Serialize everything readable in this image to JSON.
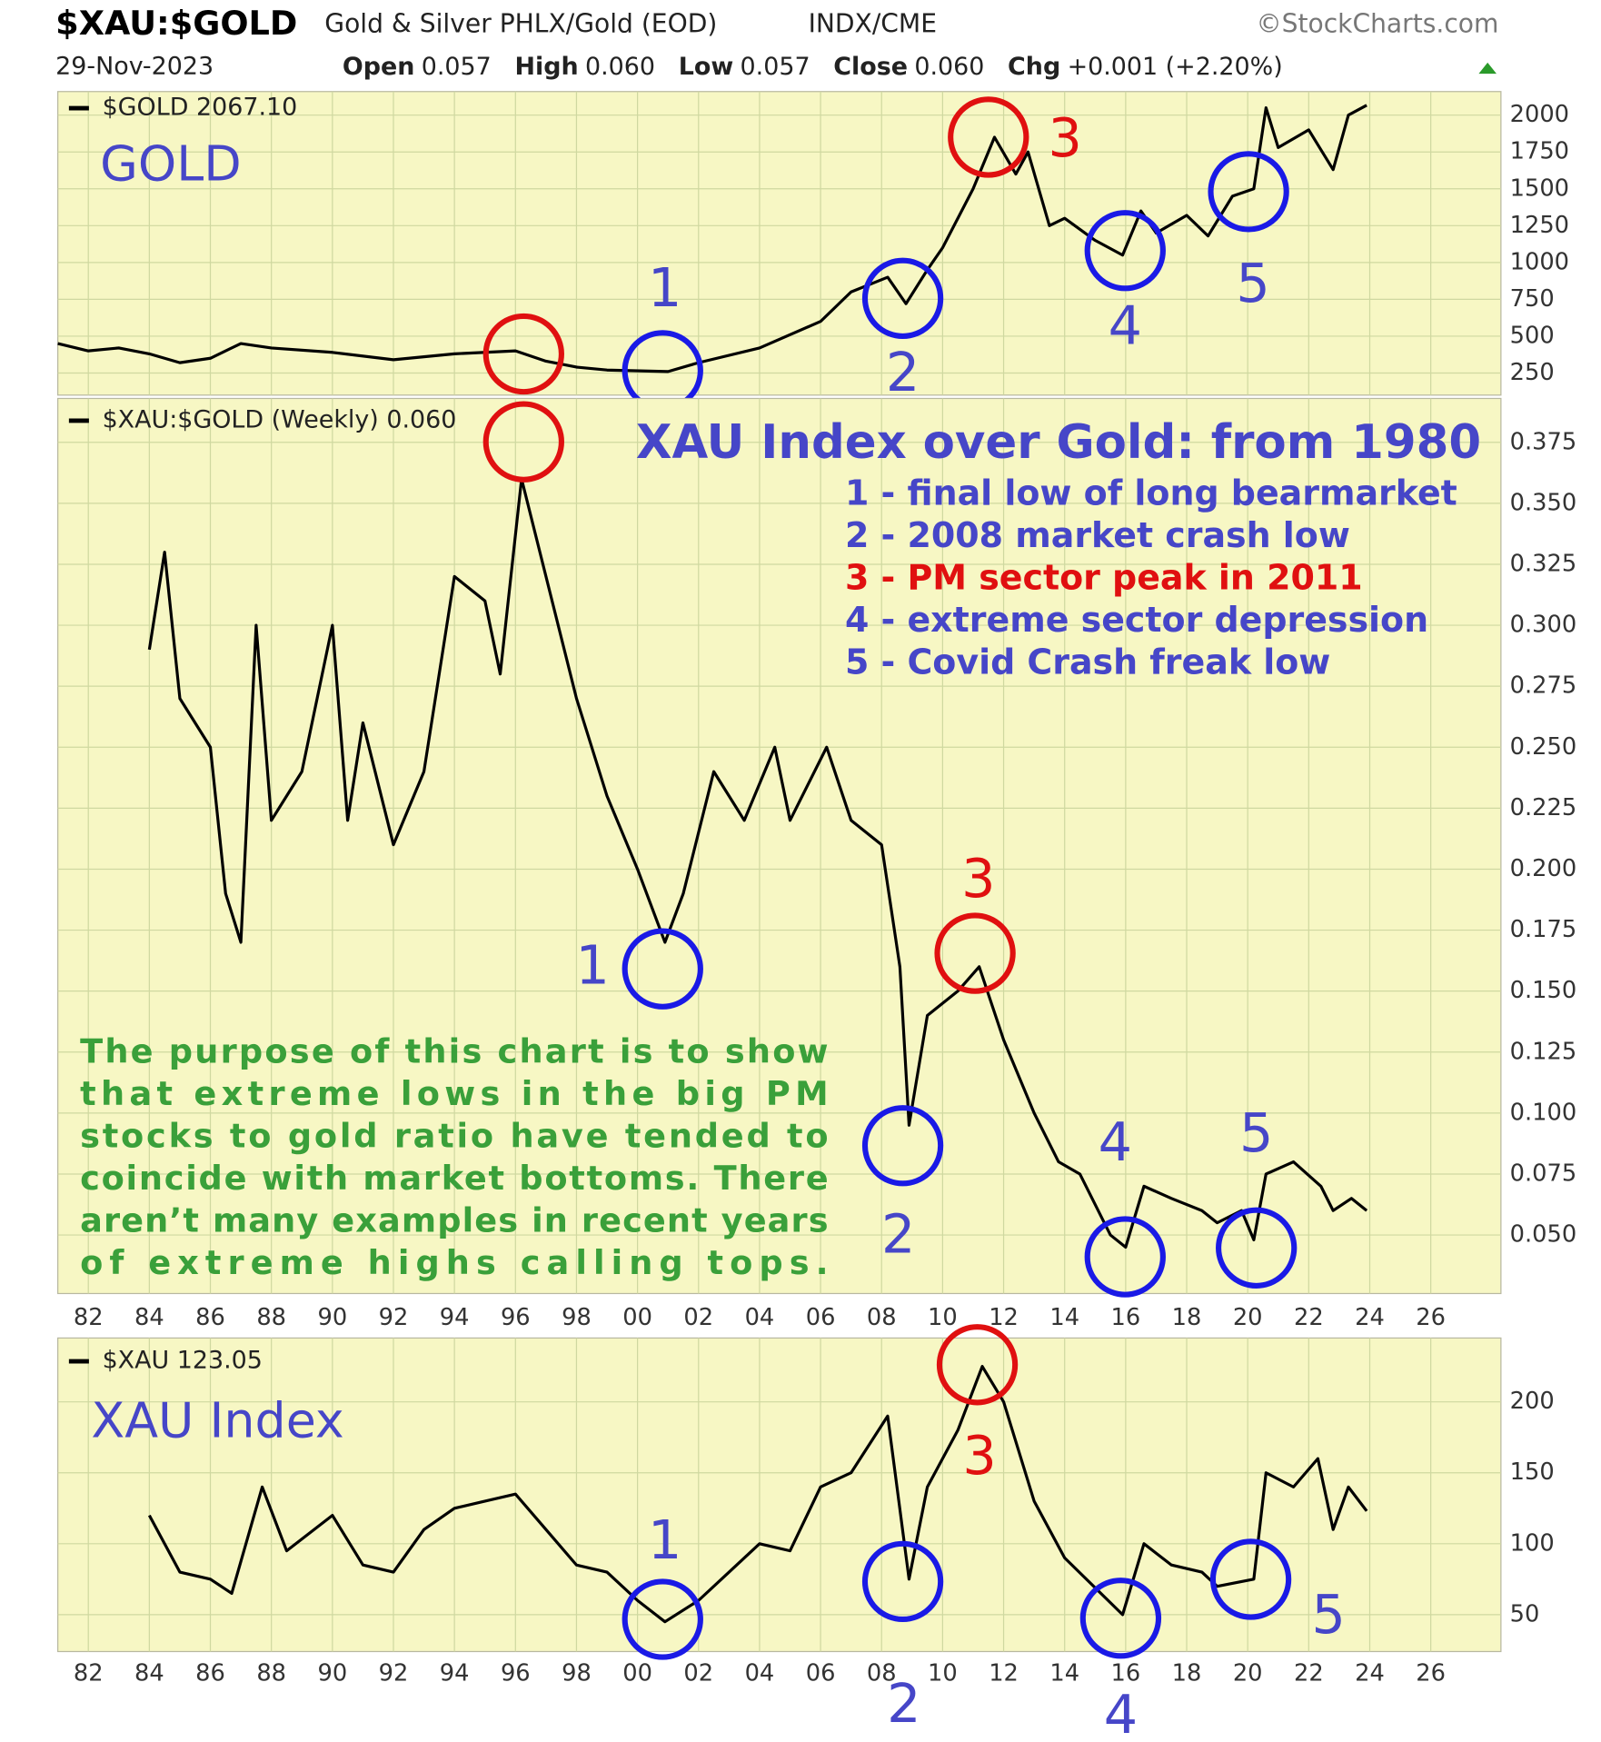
{
  "header": {
    "title": "$XAU:$GOLD",
    "subtitle": "Gold & Silver PHLX/Gold (EOD)",
    "exchange": "INDX/CME",
    "source": "©StockCharts.com",
    "date": "29-Nov-2023",
    "quote": [
      {
        "label": "Open",
        "value": "0.057"
      },
      {
        "label": "High",
        "value": "0.060"
      },
      {
        "label": "Low",
        "value": "0.057"
      },
      {
        "label": "Close",
        "value": "0.060"
      },
      {
        "label": "Chg",
        "value": "+0.001 (+2.20%)"
      }
    ]
  },
  "chart_data": [
    {
      "type": "line",
      "panel_label": "GOLD",
      "x": [
        1981,
        1982,
        1983,
        1984,
        1985,
        1986,
        1987,
        1988,
        1990,
        1992,
        1994,
        1996,
        1997,
        1998,
        1999,
        2001,
        2002,
        2004,
        2006,
        2007,
        2008.2,
        2008.8,
        2009.5,
        2010,
        2011,
        2011.7,
        2012.4,
        2012.8,
        2013.5,
        2014,
        2015,
        2015.9,
        2016.5,
        2017,
        2018,
        2018.7,
        2019.5,
        2020.2,
        2020.6,
        2021,
        2022,
        2022.8,
        2023.3,
        2023.9
      ],
      "series": [
        {
          "name": "$GOLD 2067.10",
          "color": "#000000",
          "values": [
            450,
            400,
            420,
            380,
            320,
            350,
            450,
            420,
            390,
            340,
            380,
            400,
            330,
            290,
            270,
            260,
            320,
            420,
            600,
            800,
            900,
            720,
            950,
            1100,
            1500,
            1850,
            1600,
            1750,
            1250,
            1300,
            1150,
            1050,
            1350,
            1200,
            1320,
            1180,
            1450,
            1500,
            2050,
            1780,
            1900,
            1630,
            2000,
            2067.1
          ]
        }
      ],
      "xlim": [
        1981,
        2028.3
      ],
      "ylim": [
        100,
        2160
      ],
      "yticks": [
        250,
        500,
        750,
        1000,
        1250,
        1500,
        1750,
        2000
      ],
      "grid": true,
      "annotations": [
        {
          "text": "1",
          "color": "#4646c8"
        },
        {
          "text": "2",
          "color": "#4646c8"
        },
        {
          "text": "3",
          "color": "#e01010"
        },
        {
          "text": "4",
          "color": "#4646c8"
        },
        {
          "text": "5",
          "color": "#4646c8"
        }
      ]
    },
    {
      "type": "line",
      "title": "XAU Index over Gold: from 1980",
      "notes": [
        {
          "text": "1 - final low of long bearmarket",
          "color": "#4646c8"
        },
        {
          "text": "2 - 2008 market crash low",
          "color": "#4646c8"
        },
        {
          "text": "3 - PM sector peak in 2011",
          "color": "#e01010"
        },
        {
          "text": "4 - extreme sector depression",
          "color": "#4646c8"
        },
        {
          "text": "5 - Covid Crash freak low",
          "color": "#4646c8"
        }
      ],
      "commentary": [
        "The purpose of this chart is to show",
        "that extreme lows in the big PM",
        "stocks to gold ratio have tended to",
        "coincide with market bottoms. There",
        "aren’t many examples in recent years",
        "of extreme highs calling tops."
      ],
      "x": [
        1984,
        1984.5,
        1985,
        1986,
        1986.5,
        1987,
        1987.5,
        1988,
        1989,
        1990,
        1990.5,
        1991,
        1992,
        1993,
        1994,
        1995,
        1995.5,
        1996.2,
        1997,
        1998,
        1999,
        2000,
        2000.9,
        2001.5,
        2002.5,
        2003.5,
        2004.5,
        2005,
        2006.2,
        2007,
        2008,
        2008.6,
        2008.9,
        2009.5,
        2010.5,
        2011.2,
        2012,
        2013,
        2013.8,
        2014.5,
        2015.5,
        2016,
        2016.6,
        2017.5,
        2018.5,
        2019,
        2019.8,
        2020.2,
        2020.6,
        2021.5,
        2022.4,
        2022.8,
        2023.4,
        2023.9
      ],
      "series": [
        {
          "name": "$XAU:$GOLD (Weekly) 0.060",
          "color": "#000000",
          "values": [
            0.29,
            0.33,
            0.27,
            0.25,
            0.19,
            0.17,
            0.3,
            0.22,
            0.24,
            0.3,
            0.22,
            0.26,
            0.21,
            0.24,
            0.32,
            0.31,
            0.28,
            0.36,
            0.32,
            0.27,
            0.23,
            0.2,
            0.17,
            0.19,
            0.24,
            0.22,
            0.25,
            0.22,
            0.25,
            0.22,
            0.21,
            0.16,
            0.095,
            0.14,
            0.15,
            0.16,
            0.13,
            0.1,
            0.08,
            0.075,
            0.05,
            0.045,
            0.07,
            0.065,
            0.06,
            0.055,
            0.06,
            0.048,
            0.075,
            0.08,
            0.07,
            0.06,
            0.065,
            0.06
          ]
        }
      ],
      "xlim": [
        1981,
        2028.3
      ],
      "ylim": [
        0.026,
        0.393
      ],
      "yticks": [
        0.375,
        {
          "value": 0.35,
          "label": "0.350"
        },
        0.325,
        {
          "value": 0.3,
          "label": "0.300"
        },
        0.275,
        {
          "value": 0.25,
          "label": "0.250"
        },
        0.225,
        {
          "value": 0.2,
          "label": "0.200"
        },
        0.175,
        {
          "value": 0.15,
          "label": "0.150"
        },
        0.125,
        {
          "value": 0.1,
          "label": "0.100"
        },
        0.075,
        {
          "value": 0.05,
          "label": "0.050"
        }
      ],
      "xticks": [
        {
          "value": 1982,
          "label": "82"
        },
        {
          "value": 1984,
          "label": "84"
        },
        {
          "value": 1986,
          "label": "86"
        },
        {
          "value": 1988,
          "label": "88"
        },
        {
          "value": 1990,
          "label": "90"
        },
        {
          "value": 1992,
          "label": "92"
        },
        {
          "value": 1994,
          "label": "94"
        },
        {
          "value": 1996,
          "label": "96"
        },
        {
          "value": 1998,
          "label": "98"
        },
        {
          "value": 2000,
          "label": "00"
        },
        {
          "value": 2002,
          "label": "02"
        },
        {
          "value": 2004,
          "label": "04"
        },
        {
          "value": 2006,
          "label": "06"
        },
        {
          "value": 2008,
          "label": "08"
        },
        {
          "value": 2010,
          "label": "10"
        },
        {
          "value": 2012,
          "label": "12"
        },
        {
          "value": 2014,
          "label": "14"
        },
        {
          "value": 2016,
          "label": "16"
        },
        {
          "value": 2018,
          "label": "18"
        },
        {
          "value": 2020,
          "label": "20"
        },
        {
          "value": 2022,
          "label": "22"
        },
        {
          "value": 2024,
          "label": "24"
        },
        {
          "value": 2026,
          "label": "26"
        }
      ],
      "grid": true,
      "annotations": [
        {
          "text": "1",
          "color": "#4646c8"
        },
        {
          "text": "2",
          "color": "#4646c8"
        },
        {
          "text": "3",
          "color": "#e01010"
        },
        {
          "text": "4",
          "color": "#4646c8"
        },
        {
          "text": "5",
          "color": "#4646c8"
        }
      ]
    },
    {
      "type": "line",
      "panel_label": "XAU Index",
      "x": [
        1984,
        1985,
        1986,
        1986.7,
        1987.7,
        1988.5,
        1990,
        1991,
        1992,
        1993,
        1994,
        1996,
        1997,
        1998,
        1999,
        2000,
        2000.9,
        2002,
        2003,
        2004,
        2005,
        2006,
        2007,
        2008.2,
        2008.9,
        2009.5,
        2010.5,
        2011.3,
        2012,
        2013,
        2014,
        2015.9,
        2016.6,
        2017.5,
        2018.5,
        2019,
        2020.2,
        2020.6,
        2021.5,
        2022.3,
        2022.8,
        2023.3,
        2023.9
      ],
      "series": [
        {
          "name": "$XAU 123.05",
          "color": "#000000",
          "values": [
            120,
            80,
            75,
            65,
            140,
            95,
            120,
            85,
            80,
            110,
            125,
            135,
            110,
            85,
            80,
            60,
            45,
            60,
            80,
            100,
            95,
            140,
            150,
            190,
            75,
            140,
            180,
            225,
            200,
            130,
            90,
            50,
            100,
            85,
            80,
            70,
            75,
            150,
            140,
            160,
            110,
            140,
            123.05
          ]
        }
      ],
      "xlim": [
        1981,
        2028.3
      ],
      "ylim": [
        24,
        245
      ],
      "yticks": [
        50,
        100,
        150,
        200
      ],
      "xticks": [
        {
          "value": 1982,
          "label": "82"
        },
        {
          "value": 1984,
          "label": "84"
        },
        {
          "value": 1986,
          "label": "86"
        },
        {
          "value": 1988,
          "label": "88"
        },
        {
          "value": 1990,
          "label": "90"
        },
        {
          "value": 1992,
          "label": "92"
        },
        {
          "value": 1994,
          "label": "94"
        },
        {
          "value": 1996,
          "label": "96"
        },
        {
          "value": 1998,
          "label": "98"
        },
        {
          "value": 2000,
          "label": "00"
        },
        {
          "value": 2002,
          "label": "02"
        },
        {
          "value": 2004,
          "label": "04"
        },
        {
          "value": 2006,
          "label": "06"
        },
        {
          "value": 2008,
          "label": "08"
        },
        {
          "value": 2010,
          "label": "10"
        },
        {
          "value": 2012,
          "label": "12"
        },
        {
          "value": 2014,
          "label": "14"
        },
        {
          "value": 2016,
          "label": "16"
        },
        {
          "value": 2018,
          "label": "18"
        },
        {
          "value": 2020,
          "label": "20"
        },
        {
          "value": 2022,
          "label": "22"
        },
        {
          "value": 2024,
          "label": "24"
        },
        {
          "value": 2026,
          "label": "26"
        }
      ],
      "grid": true,
      "annotations": [
        {
          "text": "1",
          "color": "#4646c8"
        },
        {
          "text": "2",
          "color": "#4646c8"
        },
        {
          "text": "3",
          "color": "#e01010"
        },
        {
          "text": "4",
          "color": "#4646c8"
        },
        {
          "text": "5",
          "color": "#4646c8"
        }
      ]
    }
  ]
}
